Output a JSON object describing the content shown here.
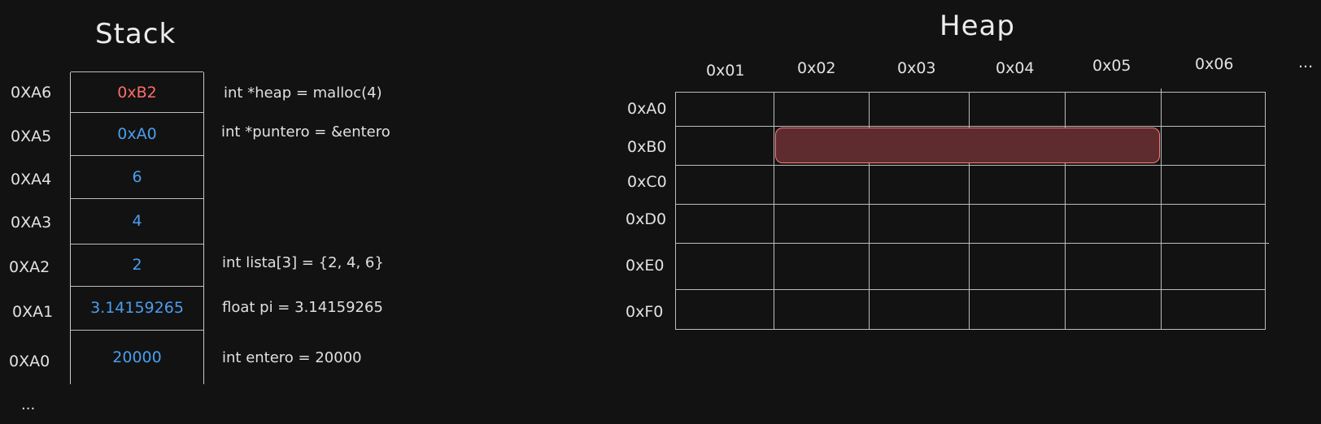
{
  "stack": {
    "title": "Stack",
    "rows": [
      {
        "address": "0XA6",
        "value": "0xB2",
        "code": "int *heap = malloc(4)",
        "highlight": true
      },
      {
        "address": "0XA5",
        "value": "0xA0",
        "code": "int *puntero = &entero",
        "highlight": false
      },
      {
        "address": "0XA4",
        "value": "6",
        "code": "",
        "highlight": false
      },
      {
        "address": "0XA3",
        "value": "4",
        "code": "",
        "highlight": false
      },
      {
        "address": "0XA2",
        "value": "2",
        "code": "int lista[3] = {2, 4, 6}",
        "highlight": false
      },
      {
        "address": "0XA1",
        "value": "3.14159265",
        "code": "float pi = 3.14159265",
        "highlight": false
      },
      {
        "address": "0XA0",
        "value": "20000",
        "code": "int entero = 20000",
        "highlight": false
      }
    ],
    "more": "..."
  },
  "heap": {
    "title": "Heap",
    "columns": [
      "0x01",
      "0x02",
      "0x03",
      "0x04",
      "0x05",
      "0x06"
    ],
    "columns_more": "...",
    "rows": [
      "0xA0",
      "0xB0",
      "0xC0",
      "0xD0",
      "0xE0",
      "0xF0"
    ],
    "allocated": {
      "row": "0xB0",
      "from": "0x02",
      "to": "0x05"
    }
  },
  "colors": {
    "background": "#121212",
    "value": "#4a9eef",
    "pointer_value": "#ff6b6b",
    "allocated_fill": "#5e2c2f",
    "allocated_border": "#ff7b7b"
  }
}
